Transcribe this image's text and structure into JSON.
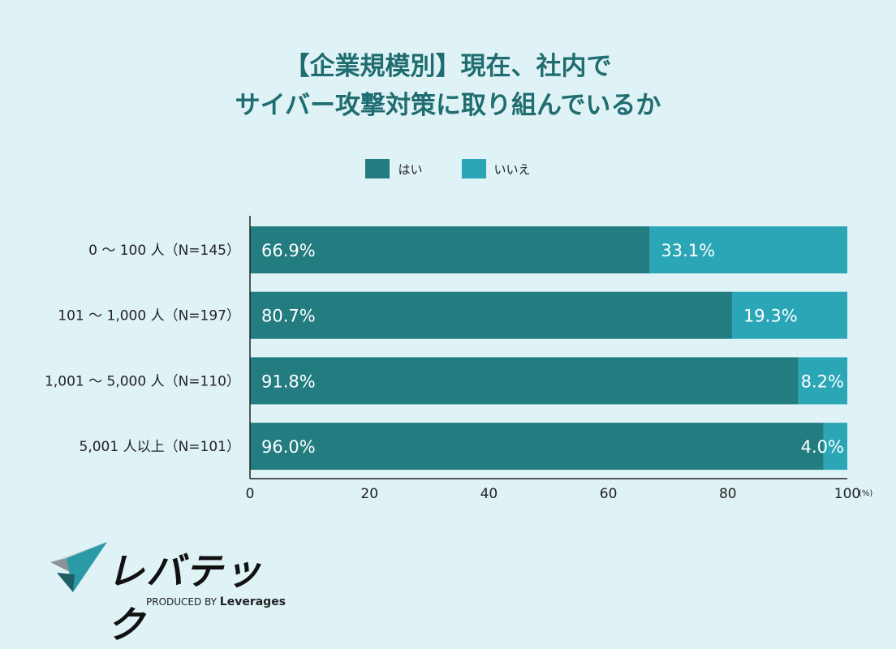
{
  "chart_data": {
    "type": "bar",
    "orientation": "horizontal",
    "stacked": true,
    "title": [
      "【企業規模別】現在、社内で",
      "サイバー攻撃対策に取り組んでいるか"
    ],
    "categories": [
      "0 〜 100 人（N=145）",
      "101 〜 1,000 人（N=197）",
      "1,001 〜 5,000 人（N=110）",
      "5,001 人以上（N=101）"
    ],
    "series": [
      {
        "name": "はい",
        "color": "#237c80",
        "values": [
          66.9,
          80.7,
          91.8,
          96.0
        ]
      },
      {
        "name": "いいえ",
        "color": "#2ba6b6",
        "values": [
          33.1,
          19.3,
          8.2,
          4.0
        ]
      }
    ],
    "xlim": [
      0,
      100
    ],
    "xticks": [
      0,
      20,
      40,
      60,
      80,
      100
    ],
    "xunit": "(%)",
    "legend_position": "top",
    "grid": false
  },
  "logo": {
    "brand": "レバテック",
    "sub_prefix": "PRODUCED BY",
    "sub_brand": "Leverages"
  }
}
